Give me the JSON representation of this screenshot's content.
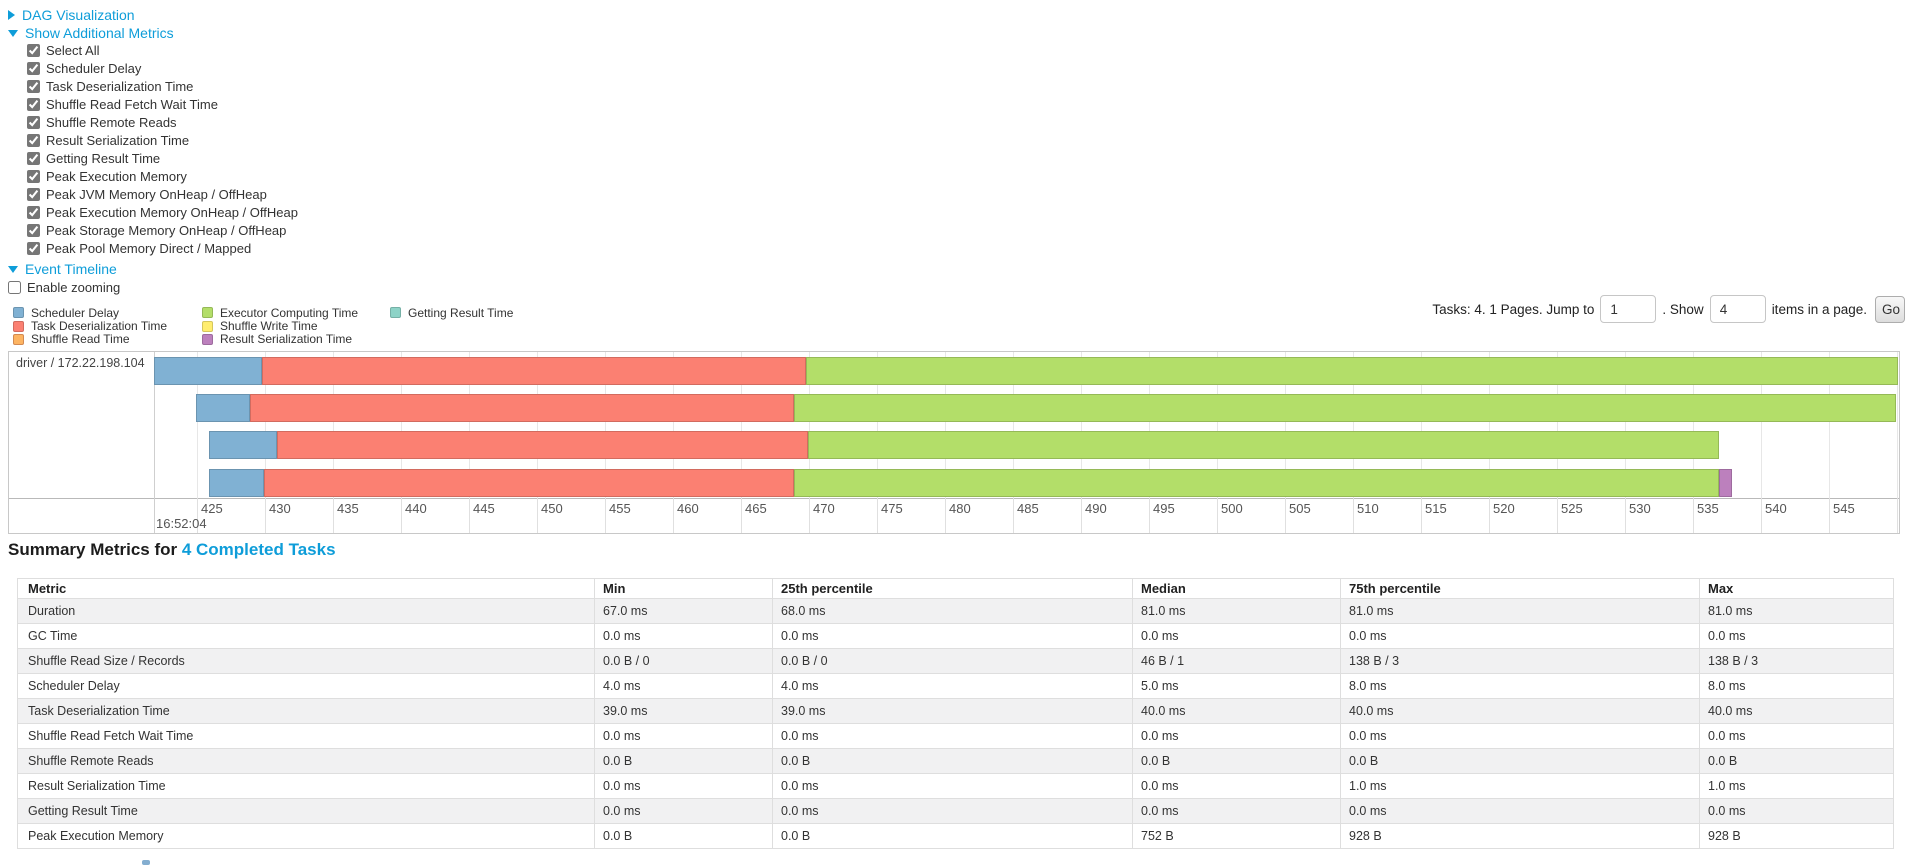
{
  "colors": {
    "link": "#0e9dd9",
    "scheduler_delay": "#80B1D3",
    "scheduler_delay_border": "#6B94B0",
    "task_deserialization": "#FB8072",
    "task_deserialization_border": "#D26B5F",
    "shuffle_read": "#FDB462",
    "shuffle_read_border": "#D38A51",
    "executor_computing": "#B3DE69",
    "executor_computing_border": "#95B957",
    "shuffle_write": "#FFED6F",
    "shuffle_write_border": "#D5C65C",
    "result_serialization": "#BC80BD",
    "result_serialization_border": "#9D6B9E",
    "getting_result": "#8DD3C7",
    "getting_result_border": "#75B0A6"
  },
  "toggles": {
    "dag": "DAG Visualization",
    "metrics": "Show Additional Metrics",
    "timeline": "Event Timeline"
  },
  "metric_checkboxes": [
    "Select All",
    "Scheduler Delay",
    "Task Deserialization Time",
    "Shuffle Read Fetch Wait Time",
    "Shuffle Remote Reads",
    "Result Serialization Time",
    "Getting Result Time",
    "Peak Execution Memory",
    "Peak JVM Memory OnHeap / OffHeap",
    "Peak Execution Memory OnHeap / OffHeap",
    "Peak Storage Memory OnHeap / OffHeap",
    "Peak Pool Memory Direct / Mapped"
  ],
  "enable_zooming_label": "Enable zooming",
  "legend_columns": [
    {
      "items": [
        {
          "label": "Scheduler Delay",
          "color_key": "scheduler_delay"
        },
        {
          "label": "Task Deserialization Time",
          "color_key": "task_deserialization"
        },
        {
          "label": "Shuffle Read Time",
          "color_key": "shuffle_read"
        }
      ]
    },
    {
      "items": [
        {
          "label": "Executor Computing Time",
          "color_key": "executor_computing"
        },
        {
          "label": "Shuffle Write Time",
          "color_key": "shuffle_write"
        },
        {
          "label": "Result Serialization Time",
          "color_key": "result_serialization"
        }
      ]
    },
    {
      "items": [
        {
          "label": "Getting Result Time",
          "color_key": "getting_result"
        }
      ]
    }
  ],
  "pagination": {
    "prefix": "Tasks: 4. 1 Pages. Jump to",
    "jump_value": "1",
    "mid": ". Show",
    "show_value": "4",
    "suffix": "items in a page.",
    "go_label": "Go"
  },
  "chart_data": {
    "type": "timeline-gantt",
    "executor_label": "driver / 172.22.198.104",
    "axis": {
      "major_label": "16:52:04",
      "unit": "ms within second 16:52:04",
      "first_tick": 425,
      "last_tick": 550,
      "step": 5,
      "window_start": 421.8
    },
    "tasks": [
      {
        "row": 1,
        "start_ms": 421.8,
        "segments": [
          {
            "name": "Scheduler Delay",
            "color_key": "scheduler_delay",
            "ms": 8
          },
          {
            "name": "Task Deserialization Time",
            "color_key": "task_deserialization",
            "ms": 40
          },
          {
            "name": "Executor Computing Time",
            "color_key": "executor_computing",
            "ms": 81
          }
        ]
      },
      {
        "row": 2,
        "start_ms": 424.9,
        "segments": [
          {
            "name": "Scheduler Delay",
            "color_key": "scheduler_delay",
            "ms": 4
          },
          {
            "name": "Task Deserialization Time",
            "color_key": "task_deserialization",
            "ms": 40
          },
          {
            "name": "Executor Computing Time",
            "color_key": "executor_computing",
            "ms": 81
          }
        ]
      },
      {
        "row": 3,
        "start_ms": 425.9,
        "segments": [
          {
            "name": "Scheduler Delay",
            "color_key": "scheduler_delay",
            "ms": 5
          },
          {
            "name": "Task Deserialization Time",
            "color_key": "task_deserialization",
            "ms": 39
          },
          {
            "name": "Executor Computing Time",
            "color_key": "executor_computing",
            "ms": 67
          }
        ]
      },
      {
        "row": 4,
        "start_ms": 425.9,
        "segments": [
          {
            "name": "Scheduler Delay",
            "color_key": "scheduler_delay",
            "ms": 4
          },
          {
            "name": "Task Deserialization Time",
            "color_key": "task_deserialization",
            "ms": 39
          },
          {
            "name": "Executor Computing Time",
            "color_key": "executor_computing",
            "ms": 68
          },
          {
            "name": "Result Serialization Time",
            "color_key": "result_serialization",
            "ms": 1
          }
        ]
      }
    ]
  },
  "summary": {
    "title_prefix": "Summary Metrics for ",
    "title_link": "4 Completed Tasks",
    "table": {
      "columns": [
        "Metric",
        "Min",
        "25th percentile",
        "Median",
        "75th percentile",
        "Max"
      ],
      "rows": [
        {
          "metric": "Duration",
          "values": [
            "67.0 ms",
            "68.0 ms",
            "81.0 ms",
            "81.0 ms",
            "81.0 ms"
          ]
        },
        {
          "metric": "GC Time",
          "values": [
            "0.0 ms",
            "0.0 ms",
            "0.0 ms",
            "0.0 ms",
            "0.0 ms"
          ]
        },
        {
          "metric": "Shuffle Read Size / Records",
          "values": [
            "0.0 B / 0",
            "0.0 B / 0",
            "46 B / 1",
            "138 B / 3",
            "138 B / 3"
          ]
        },
        {
          "metric": "Scheduler Delay",
          "values": [
            "4.0 ms",
            "4.0 ms",
            "5.0 ms",
            "8.0 ms",
            "8.0 ms"
          ]
        },
        {
          "metric": "Task Deserialization Time",
          "values": [
            "39.0 ms",
            "39.0 ms",
            "40.0 ms",
            "40.0 ms",
            "40.0 ms"
          ]
        },
        {
          "metric": "Shuffle Read Fetch Wait Time",
          "values": [
            "0.0 ms",
            "0.0 ms",
            "0.0 ms",
            "0.0 ms",
            "0.0 ms"
          ]
        },
        {
          "metric": "Shuffle Remote Reads",
          "values": [
            "0.0 B",
            "0.0 B",
            "0.0 B",
            "0.0 B",
            "0.0 B"
          ]
        },
        {
          "metric": "Result Serialization Time",
          "values": [
            "0.0 ms",
            "0.0 ms",
            "0.0 ms",
            "1.0 ms",
            "1.0 ms"
          ]
        },
        {
          "metric": "Getting Result Time",
          "values": [
            "0.0 ms",
            "0.0 ms",
            "0.0 ms",
            "0.0 ms",
            "0.0 ms"
          ]
        },
        {
          "metric": "Peak Execution Memory",
          "values": [
            "0.0 B",
            "0.0 B",
            "752 B",
            "928 B",
            "928 B"
          ]
        }
      ]
    }
  }
}
